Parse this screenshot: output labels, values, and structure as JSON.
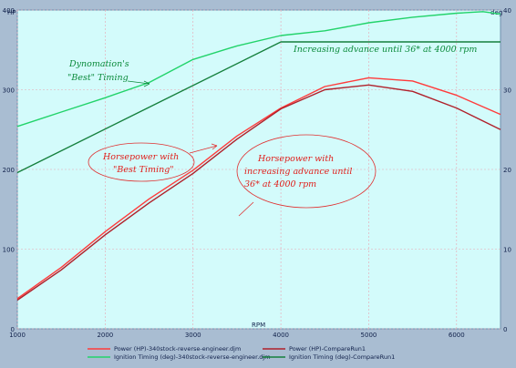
{
  "chart_data": {
    "type": "line",
    "xlabel": "RPM",
    "ylabel_left": "HP",
    "ylabel_right": "deg",
    "xlim": [
      1000,
      6500
    ],
    "ylim_left": [
      0,
      400
    ],
    "ylim_right": [
      0,
      40
    ],
    "x_ticks": [
      1000,
      2000,
      3000,
      4000,
      5000,
      6000
    ],
    "y_ticks_left": [
      0,
      100,
      200,
      300,
      400
    ],
    "y_ticks_right": [
      0,
      10,
      20,
      30,
      40
    ],
    "grid": true,
    "legend_position": "bottom",
    "series": [
      {
        "name": "Power (HP)-340stock-reverse-engineer.djm",
        "axis": "left",
        "color": "#ff3b3b",
        "x": [
          1000,
          1500,
          2000,
          2500,
          3000,
          3500,
          4000,
          4500,
          5000,
          5500,
          6000,
          6500
        ],
        "y": [
          38,
          77,
          122,
          163,
          199,
          242,
          277,
          304,
          315,
          311,
          293,
          269
        ]
      },
      {
        "name": "Power (HP)-CompareRun1",
        "axis": "left",
        "color": "#b0202a",
        "x": [
          1000,
          1500,
          2000,
          2500,
          3000,
          3500,
          4000,
          4500,
          5000,
          5500,
          6000,
          6500
        ],
        "y": [
          36,
          74,
          118,
          158,
          195,
          238,
          276,
          300,
          306,
          298,
          277,
          250
        ]
      },
      {
        "name": "Ignition Timing (deg)-340stock-reverse-engineer.djm",
        "axis": "right",
        "color": "#22d36a",
        "x": [
          1000,
          1500,
          2000,
          2500,
          3000,
          3500,
          4000,
          4500,
          5000,
          5500,
          6000,
          6300,
          6500
        ],
        "y": [
          25.4,
          27.2,
          29.0,
          30.9,
          33.8,
          35.5,
          36.8,
          37.4,
          38.4,
          39.1,
          39.6,
          39.8,
          39.5
        ]
      },
      {
        "name": "Ignition Timing (deg)-CompareRun1",
        "axis": "right",
        "color": "#15803d",
        "x": [
          1000,
          4000,
          6500
        ],
        "y": [
          19.6,
          36.0,
          36.0
        ]
      }
    ],
    "annotations": {
      "green_best": [
        "Dynomation's",
        "\"Best\" Timing"
      ],
      "advance": "Increasing advance until 36* at 4000 rpm",
      "hp_best": [
        "Horsepower with",
        "\"Best Timing\""
      ],
      "hp_advance": [
        "Horsepower with",
        "increasing advance until",
        "36* at 4000 rpm"
      ]
    }
  }
}
